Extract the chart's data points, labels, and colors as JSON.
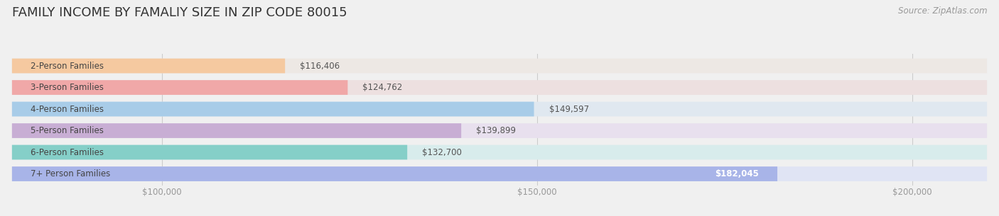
{
  "title": "FAMILY INCOME BY FAMALIY SIZE IN ZIP CODE 80015",
  "source": "Source: ZipAtlas.com",
  "categories": [
    "2-Person Families",
    "3-Person Families",
    "4-Person Families",
    "5-Person Families",
    "6-Person Families",
    "7+ Person Families"
  ],
  "values": [
    116406,
    124762,
    149597,
    139899,
    132700,
    182045
  ],
  "bar_colors": [
    "#f5c9a0",
    "#f0a8a8",
    "#a8cce8",
    "#c8aed4",
    "#85cfc8",
    "#a8b4e8"
  ],
  "bar_bg_colors": [
    "#ede8e4",
    "#ede0e0",
    "#e0e8f0",
    "#e8e0ee",
    "#d8ecec",
    "#e0e4f4"
  ],
  "value_labels": [
    "$116,406",
    "$124,762",
    "$149,597",
    "$139,899",
    "$132,700",
    "$182,045"
  ],
  "label_inside": [
    false,
    false,
    false,
    false,
    false,
    true
  ],
  "xlim": [
    80000,
    210000
  ],
  "xticks": [
    100000,
    150000,
    200000
  ],
  "xtick_labels": [
    "$100,000",
    "$150,000",
    "$200,000"
  ],
  "title_fontsize": 13,
  "label_fontsize": 8.5,
  "value_fontsize": 8.5,
  "source_fontsize": 8.5,
  "bg_color": "#f0f0f0"
}
